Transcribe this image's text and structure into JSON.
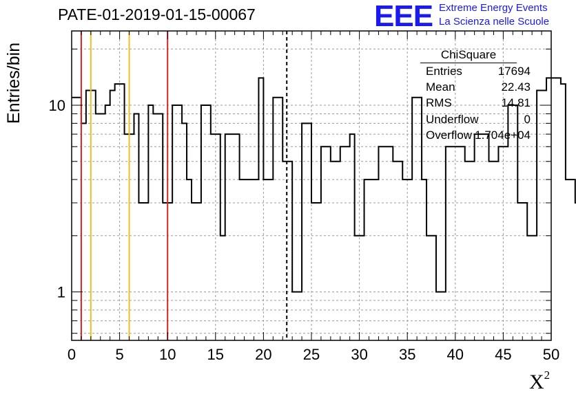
{
  "title": "PATE-01-2019-01-15-00067",
  "logo": {
    "text": "EEE",
    "line1": "Extreme Energy Events",
    "line2": "La Scienza nelle Scuole"
  },
  "stats": {
    "name": "ChiSquare",
    "rows": [
      {
        "key": "Entries",
        "value": "17694"
      },
      {
        "key": "Mean",
        "value": "22.43"
      },
      {
        "key": "RMS",
        "value": "14.81"
      },
      {
        "key": "Underflow",
        "value": "0"
      },
      {
        "key": "Overflow",
        "value": "1.704e+04"
      }
    ]
  },
  "chart_data": {
    "type": "histogram",
    "xlabel": "X",
    "xlabel_superscript": "2",
    "ylabel": "Entries/bin",
    "xlim": [
      0,
      50
    ],
    "ylim": [
      0.55,
      25
    ],
    "ylog": true,
    "grid": true,
    "xticks": [
      0,
      5,
      10,
      15,
      20,
      25,
      30,
      35,
      40,
      45,
      50
    ],
    "yticks": [
      1,
      10
    ],
    "bin_width": 0.5,
    "bin_edges_start": 0,
    "values": [
      11,
      11,
      8,
      12,
      12,
      9,
      9,
      10,
      12,
      13,
      13,
      7,
      7,
      9,
      3,
      3,
      10,
      9,
      9,
      3,
      3,
      10,
      10,
      8,
      4,
      3,
      3,
      10,
      10,
      7,
      7,
      2,
      7,
      7,
      7,
      4,
      4,
      4,
      4,
      14,
      4,
      4,
      11,
      11,
      5,
      5,
      1,
      1,
      8,
      8,
      3,
      3,
      6,
      6,
      5,
      5,
      6,
      6,
      7,
      2,
      2,
      4,
      4,
      4,
      6,
      6,
      6,
      5,
      5,
      4,
      4,
      11,
      11,
      4,
      2,
      2,
      1,
      1,
      6,
      6,
      6,
      6,
      5,
      5,
      7,
      7,
      7,
      5,
      5,
      6,
      6,
      10,
      10,
      3,
      3,
      2,
      2,
      12,
      12,
      14,
      14,
      14,
      13,
      4,
      4,
      3,
      3,
      3,
      3,
      6,
      6,
      3,
      3,
      6,
      6,
      10,
      10,
      3,
      3,
      5,
      5,
      11,
      11,
      11,
      11,
      6,
      6,
      7,
      7,
      7,
      4,
      4,
      1,
      1,
      5,
      5,
      5,
      8,
      8,
      5,
      5,
      6,
      3,
      3,
      5,
      5,
      4,
      4,
      11,
      11,
      8,
      8,
      5,
      4,
      4,
      1,
      1,
      1,
      9,
      9,
      9,
      9,
      3,
      3,
      3,
      3,
      9,
      9,
      6,
      6,
      7,
      6,
      7,
      7,
      1,
      1,
      10,
      10,
      7,
      8,
      4,
      4,
      4,
      4,
      4,
      4,
      3,
      3,
      3,
      4,
      4,
      4,
      3,
      3,
      3,
      9,
      9,
      9,
      7,
      7,
      3,
      3,
      3,
      4,
      4,
      4,
      4,
      8,
      8,
      8,
      8,
      5,
      5,
      5,
      5,
      5,
      3,
      3,
      3,
      3,
      3,
      4,
      4,
      4,
      2,
      2,
      2,
      2
    ],
    "vertical_lines": [
      {
        "x": 1,
        "color": "#dd2222",
        "style": "solid"
      },
      {
        "x": 2,
        "color": "#f0c020",
        "style": "solid"
      },
      {
        "x": 6,
        "color": "#f0c020",
        "style": "solid"
      },
      {
        "x": 10,
        "color": "#dd2222",
        "style": "solid"
      },
      {
        "x": 22.43,
        "color": "#000000",
        "style": "dashed"
      }
    ]
  }
}
